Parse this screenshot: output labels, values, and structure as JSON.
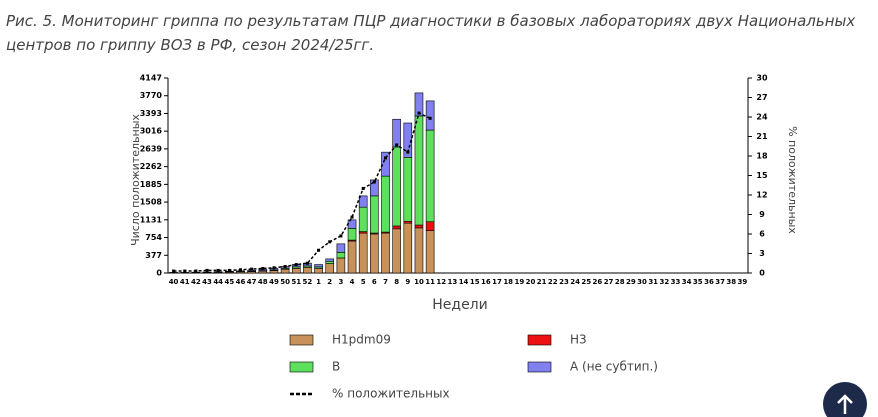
{
  "chart_data": {
    "type": "bar",
    "title": "Рис. 5. Мониторинг гриппа по результатам ПЦР диагностики в базовых лабораториях двух Национальных центров по гриппу ВОЗ в РФ, сезон 2024/25гг.",
    "ylabel": "Число положительных",
    "y2label": "% положительных",
    "xlabel": "Недели",
    "categories": [
      "40",
      "41",
      "42",
      "43",
      "44",
      "45",
      "46",
      "47",
      "48",
      "49",
      "50",
      "51",
      "52",
      "1",
      "2",
      "3",
      "4",
      "5",
      "6",
      "7",
      "8",
      "9",
      "10",
      "11",
      "12",
      "13",
      "14",
      "15",
      "16",
      "17",
      "18",
      "19",
      "20",
      "21",
      "22",
      "23",
      "24",
      "25",
      "26",
      "27",
      "28",
      "29",
      "30",
      "31",
      "32",
      "33",
      "34",
      "35",
      "36",
      "37",
      "38",
      "39"
    ],
    "ylim": [
      0,
      4147
    ],
    "yticks": [
      0,
      377,
      754,
      1131,
      1508,
      1885,
      2262,
      2639,
      3016,
      3393,
      3770,
      4147
    ],
    "y2lim": [
      0,
      30
    ],
    "y2ticks": [
      0,
      3,
      6,
      9,
      12,
      15,
      18,
      21,
      24,
      27,
      30
    ],
    "stacked": true,
    "series": [
      {
        "name": "H1pdm09",
        "color": "#c8915a",
        "values": [
          5,
          5,
          8,
          10,
          15,
          20,
          25,
          30,
          40,
          50,
          80,
          100,
          120,
          100,
          200,
          320,
          680,
          850,
          830,
          850,
          940,
          1060,
          960,
          900,
          null,
          null,
          null,
          null,
          null,
          null,
          null,
          null,
          null,
          null,
          null,
          null,
          null,
          null,
          null,
          null,
          null,
          null,
          null,
          null,
          null,
          null,
          null,
          null,
          null,
          null,
          null,
          null
        ]
      },
      {
        "name": "H3",
        "color": "#ee1111",
        "values": [
          0,
          0,
          0,
          0,
          0,
          0,
          0,
          0,
          0,
          0,
          0,
          0,
          0,
          0,
          0,
          0,
          20,
          30,
          20,
          20,
          60,
          40,
          60,
          190,
          null,
          null,
          null,
          null,
          null,
          null,
          null,
          null,
          null,
          null,
          null,
          null,
          null,
          null,
          null,
          null,
          null,
          null,
          null,
          null,
          null,
          null,
          null,
          null,
          null,
          null,
          null,
          null
        ]
      },
      {
        "name": "B",
        "color": "#5ee05e",
        "values": [
          2,
          2,
          2,
          3,
          3,
          5,
          5,
          8,
          10,
          15,
          20,
          30,
          30,
          30,
          50,
          120,
          250,
          520,
          790,
          1190,
          1680,
          1360,
          2320,
          1950,
          null,
          null,
          null,
          null,
          null,
          null,
          null,
          null,
          null,
          null,
          null,
          null,
          null,
          null,
          null,
          null,
          null,
          null,
          null,
          null,
          null,
          null,
          null,
          null,
          null,
          null,
          null,
          null
        ]
      },
      {
        "name": "А (не субтип.)",
        "color": "#8080ee",
        "values": [
          5,
          5,
          6,
          8,
          10,
          12,
          15,
          20,
          25,
          30,
          40,
          50,
          60,
          50,
          50,
          180,
          180,
          240,
          340,
          510,
          590,
          730,
          490,
          620,
          null,
          null,
          null,
          null,
          null,
          null,
          null,
          null,
          null,
          null,
          null,
          null,
          null,
          null,
          null,
          null,
          null,
          null,
          null,
          null,
          null,
          null,
          null,
          null,
          null,
          null,
          null,
          null
        ]
      },
      {
        "name": "% положительных",
        "type": "line",
        "axis": "y2",
        "color": "#000000",
        "values": [
          0.3,
          0.3,
          0.3,
          0.4,
          0.4,
          0.4,
          0.5,
          0.6,
          0.7,
          0.8,
          1.0,
          1.3,
          1.5,
          3.5,
          4.8,
          5.7,
          8.6,
          13,
          14,
          17.7,
          19.7,
          18.6,
          24.6,
          23.8,
          null,
          null,
          null,
          null,
          null,
          null,
          null,
          null,
          null,
          null,
          null,
          null,
          null,
          null,
          null,
          null,
          null,
          null,
          null,
          null,
          null,
          null,
          null,
          null,
          null,
          null,
          null,
          null
        ]
      }
    ]
  }
}
